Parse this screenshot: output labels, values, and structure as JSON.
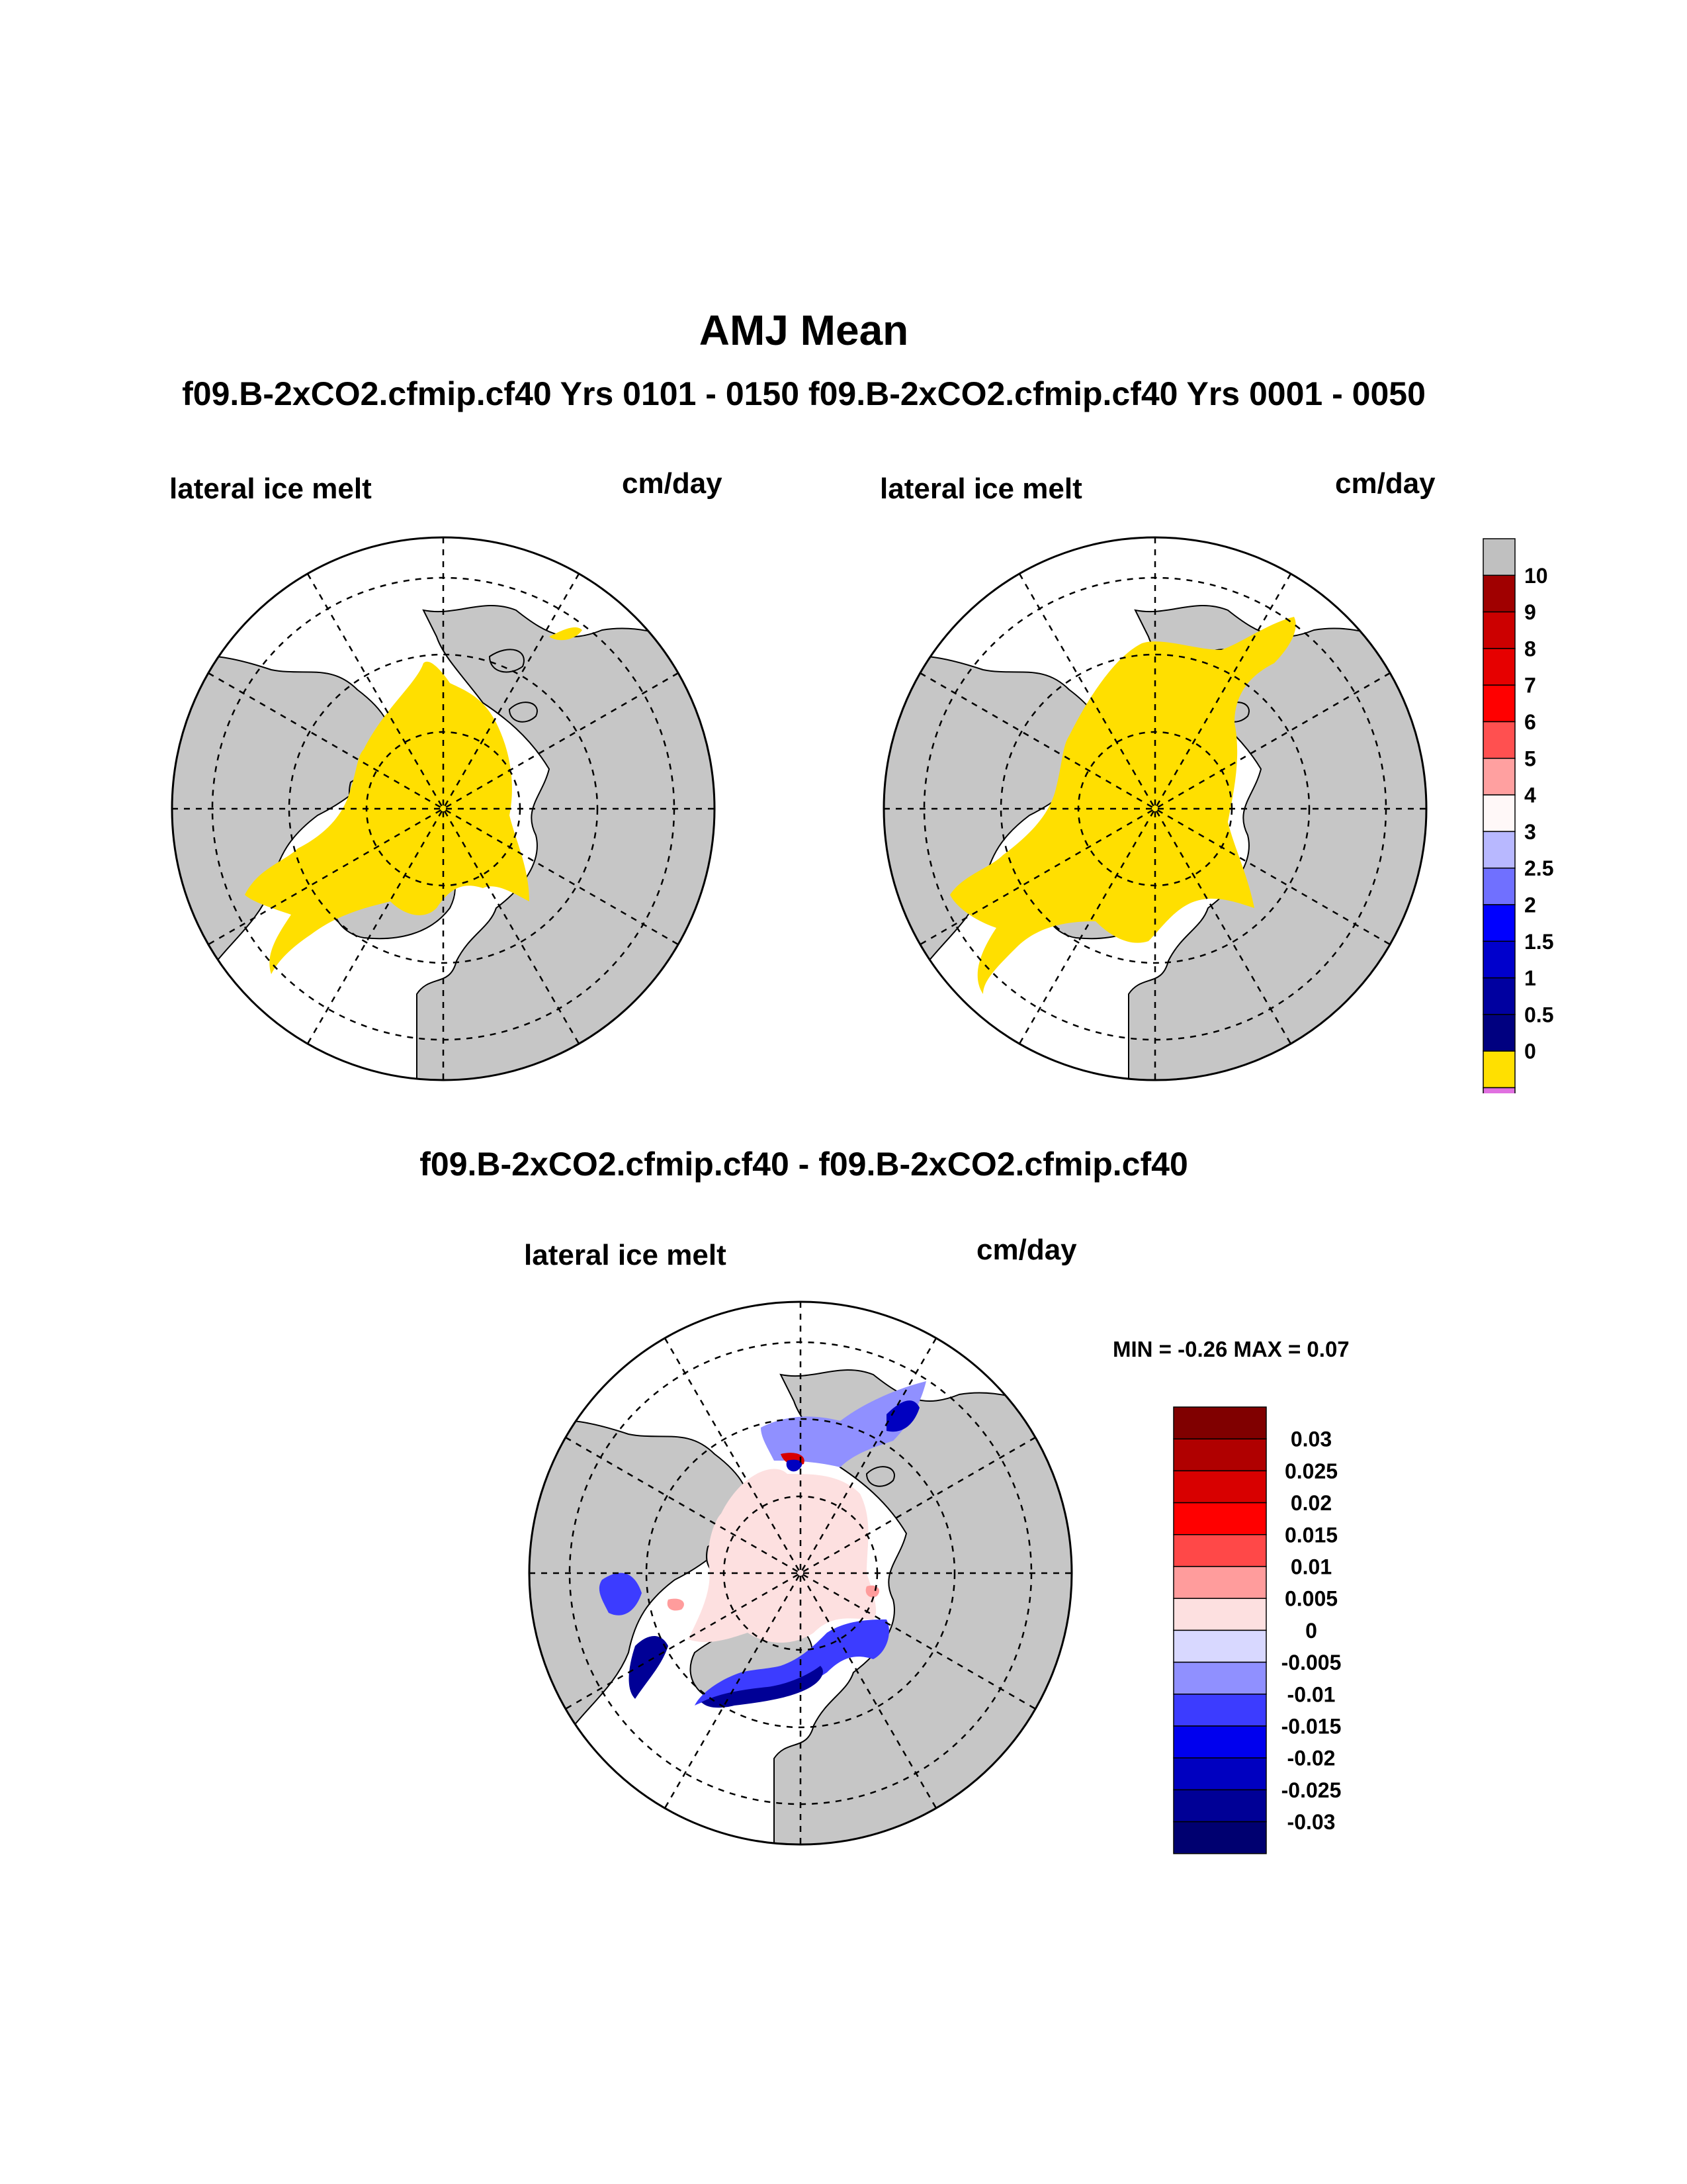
{
  "title": "AMJ Mean",
  "subtitle": "f09.B-2xCO2.cfmip.cf40  Yrs 0101 - 0150 f09.B-2xCO2.cfmip.cf40  Yrs 0001 - 0050",
  "panels": [
    {
      "variable": "lateral ice melt",
      "units": "cm/day"
    },
    {
      "variable": "lateral ice melt",
      "units": "cm/day"
    }
  ],
  "diff": {
    "title": "f09.B-2xCO2.cfmip.cf40 - f09.B-2xCO2.cfmip.cf40",
    "variable": "lateral ice melt",
    "units": "cm/day",
    "minmax": "MIN =  -0.26 MAX =   0.07"
  },
  "colorbar_top": {
    "labels": [
      "10",
      "9",
      "8",
      "7",
      "6",
      "5",
      "4",
      "3",
      "2.5",
      "2",
      "1.5",
      "1",
      "0.5",
      "0"
    ],
    "colors": [
      "#c0c0c0",
      "#a00000",
      "#cc0000",
      "#e60000",
      "#ff0000",
      "#ff5050",
      "#ffa0a0",
      "#fff8f8",
      "#b8b8ff",
      "#7070ff",
      "#0000ff",
      "#0000cc",
      "#0000a0",
      "#000080",
      "#ffe000",
      "#e070e0"
    ]
  },
  "colorbar_diff": {
    "labels": [
      "0.03",
      "0.025",
      "0.02",
      "0.015",
      "0.01",
      "0.005",
      "0",
      "-0.005",
      "-0.01",
      "-0.015",
      "-0.02",
      "-0.025",
      "-0.03"
    ],
    "colors": [
      "#800000",
      "#b00000",
      "#d80000",
      "#ff0000",
      "#ff4848",
      "#ff9c9c",
      "#fde0e0",
      "#d8d8ff",
      "#9090ff",
      "#3c3cff",
      "#0000ee",
      "#0000c0",
      "#000096",
      "#000070"
    ]
  },
  "colors": {
    "land": "#c6c6c6",
    "ice": "#ffdf00",
    "ocean": "#ffffff"
  }
}
